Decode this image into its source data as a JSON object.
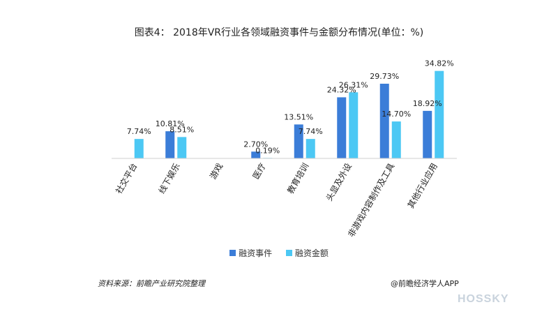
{
  "chart_data": {
    "type": "bar",
    "title": "图表4：  2018年VR行业各领域融资事件与金额分布情况(单位：%)",
    "categories": [
      "社交平台",
      "线下娱乐",
      "游戏",
      "医疗",
      "教育培训",
      "头显及外设",
      "非游戏内容制作及工具",
      "其他行业应用"
    ],
    "series": [
      {
        "name": "融资事件",
        "values": [
          null,
          10.81,
          null,
          2.7,
          13.51,
          24.32,
          29.73,
          18.92
        ],
        "labels": [
          "",
          "10.81%",
          "",
          "2.70%",
          "13.51%",
          "24.32%",
          "29.73%",
          "18.92%"
        ],
        "color": "#3b7dd8"
      },
      {
        "name": "融资金额",
        "values": [
          7.74,
          8.51,
          null,
          0.19,
          7.74,
          26.31,
          14.7,
          34.82
        ],
        "labels": [
          "7.74%",
          "8.51%",
          "",
          "0.19%",
          "7.74%",
          "26.31%",
          "14.70%",
          "34.82%"
        ],
        "color": "#4cc8f4"
      }
    ],
    "ylim": [
      0,
      36
    ],
    "grid": false,
    "legend": "bottom"
  },
  "footer": {
    "source": "资料来源：前瞻产业研究院整理",
    "credit": "@前瞻经济学人APP",
    "brand": "HOSSKY"
  }
}
